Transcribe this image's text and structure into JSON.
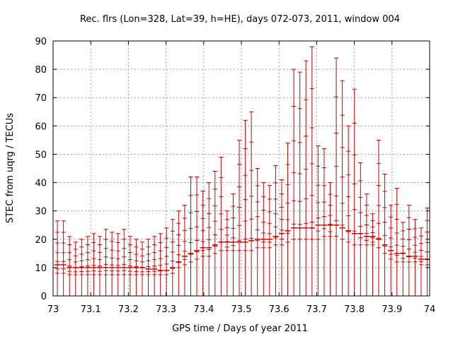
{
  "chart_data": {
    "type": "error-bar",
    "title": "Rec. flrs (Lon=328, Lat=39, h=HE), days 072-073, 2011, window 004",
    "xlabel": "GPS time / Days of year 2011",
    "ylabel": "STEC from uqrg / TECUs",
    "xlim": [
      73,
      74
    ],
    "ylim": [
      0,
      90
    ],
    "xticks": [
      "73",
      "73.1",
      "73.2",
      "73.3",
      "73.4",
      "73.5",
      "73.6",
      "73.7",
      "73.8",
      "73.9",
      "74"
    ],
    "yticks": [
      "0",
      "10",
      "20",
      "30",
      "40",
      "50",
      "60",
      "70",
      "80",
      "90"
    ],
    "grid": true,
    "colors": {
      "series": "#cc0000",
      "grid": "#a0a0a0",
      "axis": "#000000"
    },
    "series": [
      {
        "x": [
          73.0114,
          73.0275,
          73.0436,
          73.0597,
          73.0758,
          73.0919,
          73.108,
          73.1241,
          73.1402,
          73.1563,
          73.1724,
          73.1885,
          73.2046,
          73.2207,
          73.2368,
          73.2529,
          73.269,
          73.2851,
          73.3012,
          73.3173,
          73.3334,
          73.3495,
          73.3656,
          73.3817,
          73.3978,
          73.4139,
          73.43,
          73.4461,
          73.4622,
          73.4783,
          73.4944,
          73.5105,
          73.5266,
          73.5427,
          73.5588,
          73.5749,
          73.591,
          73.6071,
          73.6232,
          73.6393,
          73.6554,
          73.6715,
          73.6876,
          73.7037,
          73.7198,
          73.7359,
          73.752,
          73.7681,
          73.7842,
          73.8003,
          73.8164,
          73.8325,
          73.8486,
          73.8647,
          73.8808,
          73.8969,
          73.913,
          73.9291,
          73.9452,
          73.9613,
          73.9774,
          73.9935
        ],
        "mean": [
          11,
          11,
          10,
          10,
          10,
          10,
          10,
          10,
          10,
          10,
          10,
          10,
          10,
          10,
          10,
          9.5,
          9.5,
          9,
          9,
          10,
          12,
          14,
          15,
          16,
          17,
          17,
          18,
          19,
          19,
          19,
          19,
          19,
          19.5,
          20,
          20,
          20,
          21,
          22,
          23,
          24,
          24,
          24,
          24,
          25,
          25,
          25,
          25,
          24,
          23,
          22,
          22,
          21,
          21,
          20,
          18,
          16,
          15,
          15,
          14,
          14,
          13,
          13
        ],
        "low": [
          8,
          8,
          7.5,
          7.5,
          7.5,
          7.5,
          7.5,
          7.5,
          7.5,
          7.5,
          7.5,
          7.5,
          7.5,
          7.5,
          7.5,
          7.5,
          7.5,
          7.5,
          7.5,
          8,
          10,
          11,
          12,
          13,
          14,
          14,
          15,
          16,
          16,
          16,
          16,
          16,
          16,
          17,
          17,
          17,
          18,
          18,
          19,
          20,
          20,
          20,
          20,
          20,
          21,
          21,
          21,
          20,
          19,
          18,
          18,
          18,
          18,
          17,
          15,
          13,
          12,
          12,
          12,
          12,
          11,
          11
        ],
        "high": [
          26.5,
          26.5,
          21,
          19,
          20,
          21,
          22,
          21,
          23.5,
          22.5,
          22,
          23.5,
          21,
          20,
          19,
          20,
          21,
          22,
          24,
          27,
          30,
          32,
          42,
          42,
          37,
          40,
          44,
          49,
          30,
          36,
          55,
          62,
          65,
          45,
          40,
          39,
          46,
          41,
          54,
          80,
          79,
          83,
          88,
          53,
          52,
          40,
          84,
          76,
          60,
          73,
          47,
          36,
          29,
          55,
          43,
          32,
          38,
          26,
          32,
          27,
          24,
          31
        ]
      }
    ]
  }
}
